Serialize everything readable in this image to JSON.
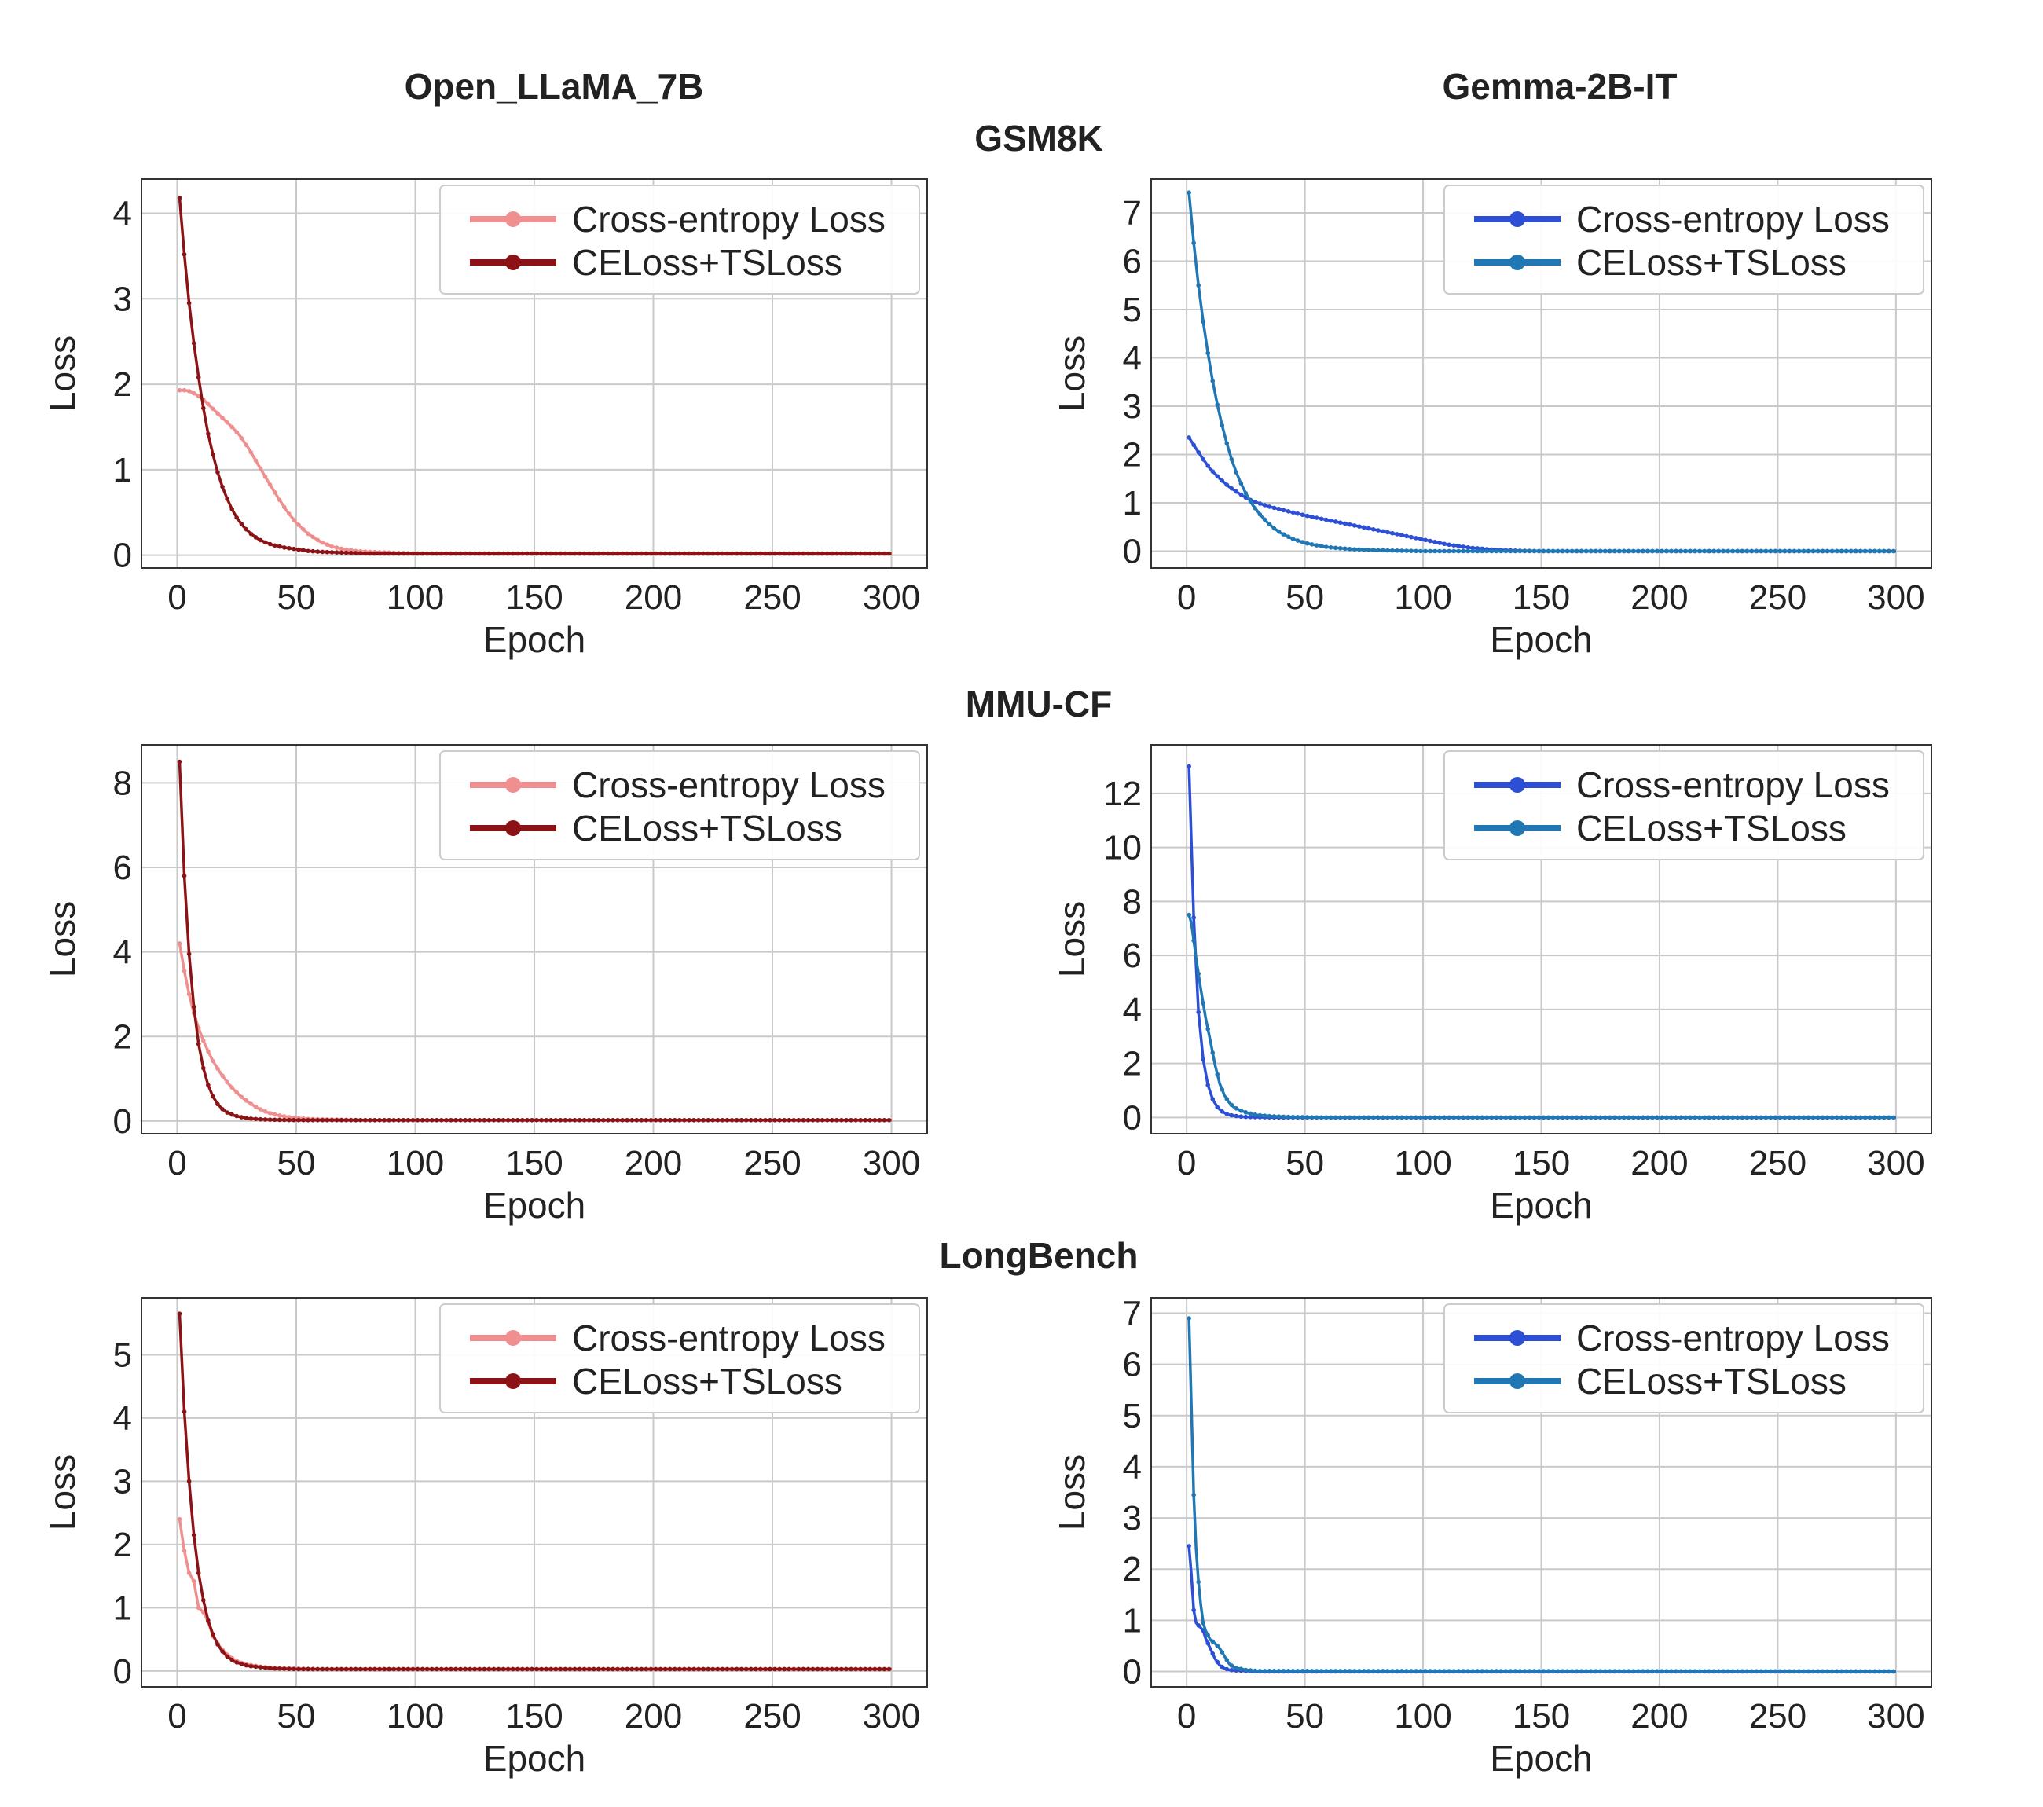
{
  "figure": {
    "column_titles": [
      "Open_LLaMA_7B",
      "Gemma-2B-IT"
    ],
    "row_titles": [
      "GSM8K",
      "MMU-CF",
      "LongBench"
    ],
    "x_tick_labels": [
      "0",
      "50",
      "100",
      "150",
      "200",
      "250",
      "300"
    ]
  },
  "chart_data": [
    {
      "id": "gsm8k-llama",
      "type": "line",
      "row": 0,
      "col": 0,
      "dataset": "GSM8K",
      "model": "Open_LLaMA_7B",
      "xlabel": "Epoch",
      "ylabel": "Loss",
      "xlim": [
        -15,
        315
      ],
      "ylim": [
        -0.15,
        4.4
      ],
      "yticks": [
        0,
        1,
        2,
        3,
        4
      ],
      "grid": true,
      "legend_position": "upper-right",
      "series": [
        {
          "name": "Cross-entropy Loss",
          "color": "#f08f8f",
          "x": [
            1,
            3,
            5,
            8,
            11,
            14,
            17,
            20,
            23,
            26,
            30,
            34,
            38,
            42,
            46,
            50,
            55,
            60,
            65,
            70,
            75,
            80,
            90,
            100,
            300
          ],
          "values": [
            1.93,
            1.93,
            1.92,
            1.88,
            1.82,
            1.74,
            1.66,
            1.58,
            1.5,
            1.41,
            1.25,
            1.06,
            0.87,
            0.69,
            0.52,
            0.38,
            0.25,
            0.16,
            0.1,
            0.07,
            0.05,
            0.04,
            0.03,
            0.02,
            0.02
          ]
        },
        {
          "name": "CELoss+TSLoss",
          "color": "#8b1316",
          "x": [
            1,
            3,
            5,
            7,
            9,
            11,
            13,
            15,
            17,
            19,
            21,
            23,
            25,
            28,
            31,
            34,
            37,
            40,
            45,
            50,
            55,
            60,
            70,
            80,
            100,
            300
          ],
          "values": [
            4.18,
            3.52,
            2.95,
            2.48,
            2.08,
            1.72,
            1.42,
            1.18,
            0.97,
            0.8,
            0.66,
            0.54,
            0.44,
            0.33,
            0.25,
            0.19,
            0.15,
            0.12,
            0.09,
            0.07,
            0.05,
            0.04,
            0.03,
            0.02,
            0.02,
            0.02
          ]
        }
      ]
    },
    {
      "id": "gsm8k-gemma",
      "type": "line",
      "row": 0,
      "col": 1,
      "dataset": "GSM8K",
      "model": "Gemma-2B-IT",
      "xlabel": "Epoch",
      "ylabel": "Loss",
      "xlim": [
        -15,
        315
      ],
      "ylim": [
        -0.35,
        7.7
      ],
      "yticks": [
        0,
        1,
        2,
        3,
        4,
        5,
        6,
        7
      ],
      "grid": true,
      "legend_position": "upper-right",
      "series": [
        {
          "name": "Cross-entropy Loss",
          "color": "#2c4fd6",
          "x": [
            1,
            4,
            7,
            10,
            14,
            18,
            22,
            26,
            30,
            35,
            40,
            45,
            50,
            60,
            70,
            80,
            90,
            100,
            110,
            120,
            130,
            140,
            150,
            160,
            300
          ],
          "values": [
            2.35,
            2.12,
            1.9,
            1.7,
            1.5,
            1.33,
            1.2,
            1.08,
            1.0,
            0.92,
            0.86,
            0.8,
            0.74,
            0.64,
            0.54,
            0.44,
            0.34,
            0.24,
            0.14,
            0.07,
            0.03,
            0.01,
            0.0,
            0.0,
            0.0
          ]
        },
        {
          "name": "CELoss+TSLoss",
          "color": "#2077b4",
          "x": [
            1,
            3,
            5,
            7,
            9,
            11,
            13,
            15,
            17,
            19,
            21,
            23,
            25,
            28,
            31,
            34,
            37,
            40,
            45,
            50,
            55,
            60,
            70,
            80,
            90,
            100,
            300
          ],
          "values": [
            7.42,
            6.38,
            5.5,
            4.75,
            4.1,
            3.52,
            3.03,
            2.6,
            2.23,
            1.9,
            1.63,
            1.4,
            1.2,
            0.95,
            0.76,
            0.6,
            0.47,
            0.37,
            0.25,
            0.17,
            0.12,
            0.08,
            0.04,
            0.02,
            0.01,
            0.0,
            0.0
          ]
        }
      ]
    },
    {
      "id": "mmu-llama",
      "type": "line",
      "row": 1,
      "col": 0,
      "dataset": "MMU-CF",
      "model": "Open_LLaMA_7B",
      "xlabel": "Epoch",
      "ylabel": "Loss",
      "xlim": [
        -15,
        315
      ],
      "ylim": [
        -0.3,
        8.9
      ],
      "yticks": [
        0,
        2,
        4,
        6,
        8
      ],
      "grid": true,
      "legend_position": "upper-right",
      "series": [
        {
          "name": "Cross-entropy Loss",
          "color": "#f08f8f",
          "x": [
            1,
            3,
            5,
            7,
            9,
            11,
            13,
            15,
            18,
            21,
            24,
            27,
            30,
            34,
            38,
            42,
            46,
            50,
            55,
            60,
            70,
            80,
            300
          ],
          "values": [
            4.2,
            3.55,
            3.0,
            2.55,
            2.2,
            1.9,
            1.65,
            1.42,
            1.15,
            0.92,
            0.73,
            0.57,
            0.44,
            0.3,
            0.2,
            0.14,
            0.1,
            0.07,
            0.05,
            0.04,
            0.03,
            0.02,
            0.02
          ]
        },
        {
          "name": "CELoss+TSLoss",
          "color": "#8b1316",
          "x": [
            1,
            3,
            5,
            7,
            9,
            11,
            13,
            15,
            17,
            19,
            21,
            24,
            27,
            30,
            35,
            40,
            50,
            60,
            300
          ],
          "values": [
            8.5,
            5.8,
            3.95,
            2.7,
            1.82,
            1.25,
            0.85,
            0.58,
            0.4,
            0.28,
            0.2,
            0.13,
            0.09,
            0.06,
            0.04,
            0.03,
            0.02,
            0.02,
            0.02
          ]
        }
      ]
    },
    {
      "id": "mmu-gemma",
      "type": "line",
      "row": 1,
      "col": 1,
      "dataset": "MMU-CF",
      "model": "Gemma-2B-IT",
      "xlabel": "Epoch",
      "ylabel": "Loss",
      "xlim": [
        -15,
        315
      ],
      "ylim": [
        -0.6,
        13.8
      ],
      "yticks": [
        0,
        2,
        4,
        6,
        8,
        10,
        12
      ],
      "grid": true,
      "legend_position": "upper-right",
      "series": [
        {
          "name": "Cross-entropy Loss",
          "color": "#2c4fd6",
          "x": [
            1,
            3,
            5,
            7,
            9,
            11,
            13,
            15,
            17,
            19,
            22,
            25,
            30,
            40,
            300
          ],
          "values": [
            13.0,
            7.4,
            3.9,
            2.15,
            1.2,
            0.68,
            0.38,
            0.22,
            0.13,
            0.08,
            0.04,
            0.02,
            0.01,
            0.0,
            0.0
          ]
        },
        {
          "name": "CELoss+TSLoss",
          "color": "#2077b4",
          "x": [
            1,
            2,
            4,
            6,
            8,
            10,
            12,
            14,
            16,
            18,
            20,
            23,
            26,
            30,
            35,
            40,
            50,
            60,
            300
          ],
          "values": [
            7.5,
            7.2,
            5.9,
            4.75,
            3.7,
            2.85,
            1.95,
            1.25,
            0.82,
            0.55,
            0.38,
            0.25,
            0.16,
            0.09,
            0.05,
            0.03,
            0.01,
            0.0,
            0.0
          ]
        }
      ]
    },
    {
      "id": "longbench-llama",
      "type": "line",
      "row": 2,
      "col": 0,
      "dataset": "LongBench",
      "model": "Open_LLaMA_7B",
      "xlabel": "Epoch",
      "ylabel": "Loss",
      "xlim": [
        -15,
        315
      ],
      "ylim": [
        -0.25,
        5.9
      ],
      "yticks": [
        0,
        1,
        2,
        3,
        4,
        5
      ],
      "grid": true,
      "legend_position": "upper-right",
      "series": [
        {
          "name": "Cross-entropy Loss",
          "color": "#f08f8f",
          "x": [
            1,
            3,
            5,
            7,
            9,
            11,
            13,
            15,
            18,
            21,
            24,
            27,
            30,
            35,
            40,
            50,
            60,
            300
          ],
          "values": [
            2.4,
            1.9,
            1.55,
            1.42,
            1.0,
            0.93,
            0.78,
            0.55,
            0.38,
            0.26,
            0.18,
            0.13,
            0.1,
            0.07,
            0.05,
            0.04,
            0.03,
            0.03
          ]
        },
        {
          "name": "CELoss+TSLoss",
          "color": "#8b1316",
          "x": [
            1,
            3,
            5,
            7,
            9,
            11,
            13,
            15,
            17,
            19,
            21,
            24,
            27,
            30,
            35,
            40,
            50,
            60,
            300
          ],
          "values": [
            5.65,
            4.1,
            3.0,
            2.15,
            1.55,
            1.12,
            0.8,
            0.58,
            0.42,
            0.31,
            0.23,
            0.15,
            0.11,
            0.08,
            0.06,
            0.04,
            0.03,
            0.03,
            0.03
          ]
        }
      ]
    },
    {
      "id": "longbench-gemma",
      "type": "line",
      "row": 2,
      "col": 1,
      "dataset": "LongBench",
      "model": "Gemma-2B-IT",
      "xlabel": "Epoch",
      "ylabel": "Loss",
      "xlim": [
        -15,
        315
      ],
      "ylim": [
        -0.3,
        7.3
      ],
      "yticks": [
        0,
        1,
        2,
        3,
        4,
        5,
        6,
        7
      ],
      "grid": true,
      "legend_position": "upper-right",
      "series": [
        {
          "name": "Cross-entropy Loss",
          "color": "#2c4fd6",
          "x": [
            1,
            2,
            3,
            4,
            5,
            6,
            7,
            8,
            10,
            12,
            14,
            16,
            18,
            20,
            25,
            30,
            300
          ],
          "values": [
            2.45,
            1.9,
            1.2,
            0.95,
            0.9,
            0.85,
            0.8,
            0.65,
            0.45,
            0.25,
            0.12,
            0.06,
            0.03,
            0.02,
            0.01,
            0.0,
            0.0
          ]
        },
        {
          "name": "CELoss+TSLoss",
          "color": "#2077b4",
          "x": [
            1,
            2,
            3,
            4,
            5,
            6,
            7,
            8,
            10,
            12,
            14,
            16,
            18,
            20,
            25,
            30,
            300
          ],
          "values": [
            6.9,
            5.2,
            3.45,
            2.4,
            1.75,
            1.3,
            0.95,
            0.8,
            0.62,
            0.55,
            0.45,
            0.3,
            0.15,
            0.08,
            0.03,
            0.01,
            0.0
          ]
        }
      ]
    }
  ]
}
